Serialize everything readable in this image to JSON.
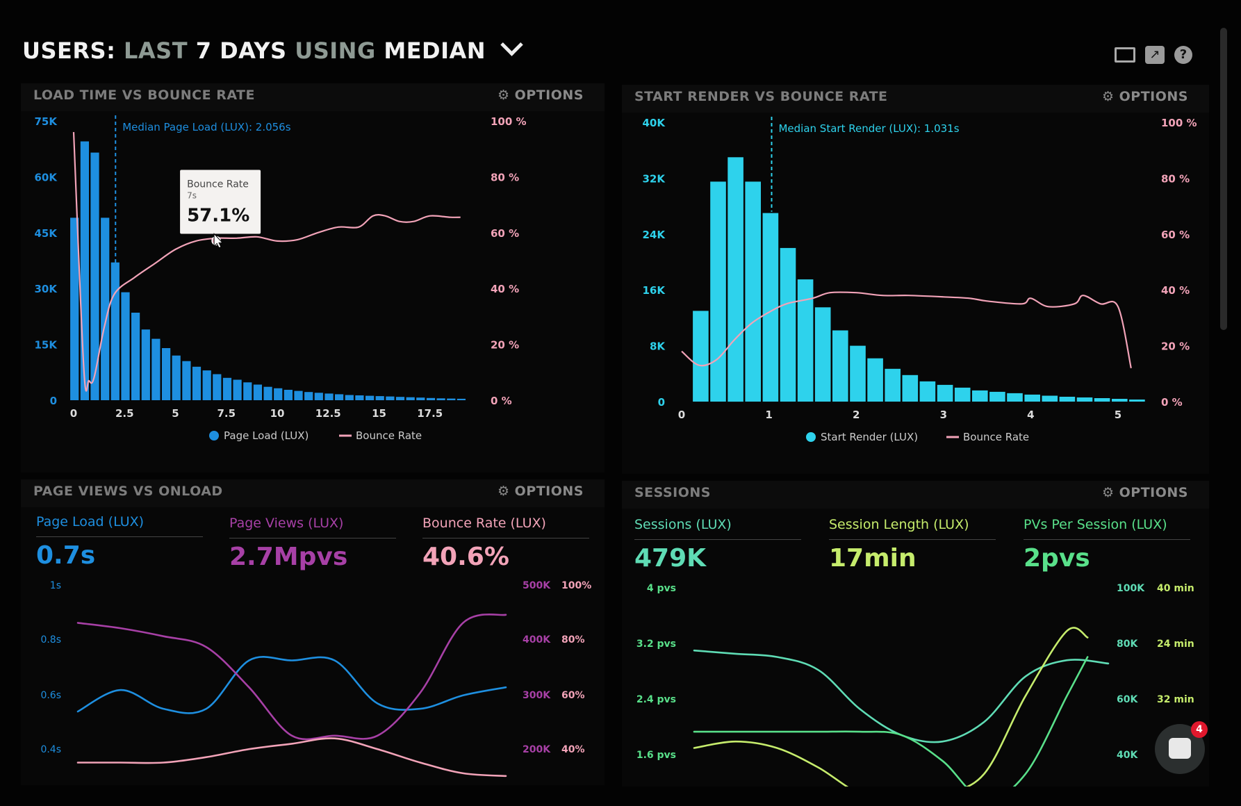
{
  "header": {
    "p1": "USERS:",
    "p2": "LAST",
    "p3": "7 DAYS",
    "p4": "USING",
    "p5": "MEDIAN",
    "icons": [
      "monitor-icon",
      "share-icon",
      "help-icon"
    ]
  },
  "colors": {
    "page_load": "#1e8fe0",
    "start_render": "#2ed2ec",
    "bounce_rate": "#f2a3b8",
    "page_views": "#a740a6",
    "sessions": "#5fdcb5",
    "session_length": "#c6ec6c",
    "pvs_per_session": "#59e08a"
  },
  "panel1": {
    "title": "LOAD TIME VS BOUNCE RATE",
    "options": "OPTIONS",
    "annotation": "Median Page Load (LUX): 2.056s",
    "tooltip": {
      "label": "Bounce Rate",
      "sub": "7s",
      "value": "57.1%"
    },
    "legend": [
      "Page Load (LUX)",
      "Bounce Rate"
    ]
  },
  "panel2": {
    "title": "START RENDER VS BOUNCE RATE",
    "options": "OPTIONS",
    "annotation": "Median Start Render (LUX): 1.031s",
    "legend": [
      "Start Render (LUX)",
      "Bounce Rate"
    ]
  },
  "panel3": {
    "title": "PAGE VIEWS VS ONLOAD",
    "options": "OPTIONS",
    "metrics": [
      {
        "label": "Page Load (LUX)",
        "value": "0.7s"
      },
      {
        "label": "Page Views (LUX)",
        "value": "2.7Mpvs"
      },
      {
        "label": "Bounce Rate (LUX)",
        "value": "40.6%"
      }
    ]
  },
  "panel4": {
    "title": "SESSIONS",
    "options": "OPTIONS",
    "metrics": [
      {
        "label": "Sessions (LUX)",
        "value": "479K"
      },
      {
        "label": "Session Length (LUX)",
        "value": "17min"
      },
      {
        "label": "PVs Per Session (LUX)",
        "value": "2pvs"
      }
    ]
  },
  "chat": {
    "badge": "4"
  },
  "chart_data": [
    {
      "type": "bar",
      "x_ticks": [
        "0",
        "2.5",
        "5",
        "7.5",
        "10",
        "12.5",
        "15",
        "17.5"
      ],
      "y_ticks": [
        "0",
        "15K",
        "30K",
        "45K",
        "60K",
        "75K"
      ],
      "y2_ticks": [
        "0 %",
        "20 %",
        "40 %",
        "60 %",
        "80 %",
        "100 %"
      ],
      "ylim": [
        0,
        75000
      ],
      "y2lim": [
        0,
        100
      ],
      "xlim": [
        0,
        20
      ],
      "median_x": 2.056,
      "series": [
        {
          "name": "Page Load (LUX)",
          "type": "bar",
          "bin": 0.5,
          "values": [
            49000,
            69500,
            66500,
            49000,
            37000,
            29000,
            23500,
            19000,
            16500,
            14000,
            12000,
            10500,
            9000,
            8000,
            7000,
            6000,
            5500,
            4800,
            4200,
            3600,
            3200,
            2800,
            2500,
            2200,
            2000,
            1800,
            1600,
            1400,
            1300,
            1200,
            1100,
            1000,
            900,
            800,
            700,
            600,
            500,
            450,
            400
          ]
        },
        {
          "name": "Bounce Rate",
          "type": "line",
          "points": [
            [
              0,
              96
            ],
            [
              0.5,
              11
            ],
            [
              0.75,
              7
            ],
            [
              1,
              8
            ],
            [
              1.5,
              26
            ],
            [
              2,
              38
            ],
            [
              3,
              44
            ],
            [
              4,
              49
            ],
            [
              5,
              54
            ],
            [
              6,
              57
            ],
            [
              7,
              58
            ],
            [
              8,
              58
            ],
            [
              9,
              58.5
            ],
            [
              10,
              57
            ],
            [
              11,
              57.5
            ],
            [
              12,
              60
            ],
            [
              13,
              62
            ],
            [
              14,
              62
            ],
            [
              14.7,
              66
            ],
            [
              15.3,
              66
            ],
            [
              16,
              64
            ],
            [
              16.7,
              64
            ],
            [
              17.5,
              66
            ],
            [
              18.5,
              65.5
            ],
            [
              19,
              65.5
            ]
          ]
        }
      ]
    },
    {
      "type": "bar",
      "x_ticks": [
        "0",
        "1",
        "2",
        "3",
        "4",
        "5"
      ],
      "y_ticks": [
        "0",
        "8K",
        "16K",
        "24K",
        "32K",
        "40K"
      ],
      "y2_ticks": [
        "0 %",
        "20 %",
        "40 %",
        "60 %",
        "80 %",
        "100 %"
      ],
      "ylim": [
        0,
        40000
      ],
      "y2lim": [
        0,
        100
      ],
      "xlim": [
        0,
        5
      ],
      "median_x": 1.031,
      "series": [
        {
          "name": "Start Render (LUX)",
          "type": "bar",
          "bin": 0.2,
          "values": [
            13000,
            31500,
            35000,
            31500,
            27000,
            22000,
            17500,
            13500,
            10200,
            8000,
            6200,
            4700,
            3800,
            2900,
            2400,
            2000,
            1600,
            1400,
            1200,
            1000,
            850,
            700,
            600,
            500,
            400,
            300
          ]
        },
        {
          "name": "Bounce Rate",
          "type": "line",
          "points": [
            [
              0,
              18
            ],
            [
              0.2,
              13
            ],
            [
              0.4,
              15
            ],
            [
              0.6,
              22
            ],
            [
              0.8,
              28
            ],
            [
              1,
              32
            ],
            [
              1.2,
              35
            ],
            [
              1.5,
              37
            ],
            [
              1.7,
              39
            ],
            [
              2,
              39
            ],
            [
              2.3,
              38
            ],
            [
              2.6,
              38
            ],
            [
              3,
              37.5
            ],
            [
              3.3,
              37
            ],
            [
              3.5,
              36
            ],
            [
              3.9,
              35
            ],
            [
              4,
              37
            ],
            [
              4.2,
              34
            ],
            [
              4.5,
              35
            ],
            [
              4.6,
              38
            ],
            [
              4.8,
              35
            ],
            [
              5,
              34
            ],
            [
              5.15,
              12
            ]
          ]
        }
      ]
    },
    {
      "type": "line",
      "y_ticks": [
        "0.4s",
        "0.6s",
        "0.8s",
        "1s"
      ],
      "y2_ticks_views": [
        "200K",
        "300K",
        "400K",
        "500K"
      ],
      "y2_ticks_bounce": [
        "40%",
        "60%",
        "80%",
        "100%"
      ],
      "ylim": [
        0.3,
        1.05
      ],
      "series": [
        {
          "name": "Page Load (LUX)",
          "axis": "s",
          "points": [
            [
              0,
              0.6
            ],
            [
              1,
              0.68
            ],
            [
              2,
              0.61
            ],
            [
              3,
              0.61
            ],
            [
              4,
              0.79
            ],
            [
              5,
              0.79
            ],
            [
              6,
              0.79
            ],
            [
              7,
              0.63
            ],
            [
              8,
              0.61
            ],
            [
              9,
              0.66
            ],
            [
              10,
              0.69
            ]
          ]
        },
        {
          "name": "Page Views (LUX)",
          "axis": "s",
          "points": [
            [
              0,
              0.93
            ],
            [
              1,
              0.91
            ],
            [
              2,
              0.88
            ],
            [
              3,
              0.84
            ],
            [
              4,
              0.69
            ],
            [
              5,
              0.51
            ],
            [
              6,
              0.51
            ],
            [
              7,
              0.51
            ],
            [
              8,
              0.67
            ],
            [
              9,
              0.93
            ],
            [
              10,
              0.96
            ]
          ]
        },
        {
          "name": "Bounce Rate (LUX)",
          "axis": "s",
          "points": [
            [
              0,
              0.41
            ],
            [
              1,
              0.41
            ],
            [
              2,
              0.41
            ],
            [
              3,
              0.43
            ],
            [
              4,
              0.46
            ],
            [
              5,
              0.48
            ],
            [
              6,
              0.5
            ],
            [
              7,
              0.46
            ],
            [
              8,
              0.41
            ],
            [
              9,
              0.37
            ],
            [
              10,
              0.36
            ]
          ]
        }
      ]
    },
    {
      "type": "line",
      "y_ticks": [
        "1.6 pvs",
        "2.4 pvs",
        "3.2 pvs",
        "4 pvs"
      ],
      "y2_ticks_sessions": [
        "40K",
        "60K",
        "80K",
        "100K"
      ],
      "y2_ticks_length": [
        "40 min",
        "32 min",
        "24 min",
        "40 min"
      ],
      "ylim": [
        1.0,
        4.1
      ],
      "series": [
        {
          "name": "Sessions (LUX)",
          "axis": "pvs",
          "points": [
            [
              0,
              3.2
            ],
            [
              1,
              3.15
            ],
            [
              2,
              3.1
            ],
            [
              3,
              2.9
            ],
            [
              4,
              2.3
            ],
            [
              5,
              1.9
            ],
            [
              6,
              1.8
            ],
            [
              7,
              2.1
            ],
            [
              8,
              2.8
            ],
            [
              9,
              3.05
            ],
            [
              10,
              3.0
            ]
          ]
        },
        {
          "name": "Session Length (LUX)",
          "axis": "pvs",
          "points": [
            [
              0,
              1.7
            ],
            [
              1,
              1.8
            ],
            [
              2,
              1.7
            ],
            [
              3,
              1.4
            ],
            [
              4,
              1.0
            ],
            [
              5,
              0.9
            ],
            [
              6,
              1.0
            ],
            [
              7,
              1.3
            ],
            [
              8,
              2.5
            ],
            [
              9,
              3.5
            ],
            [
              9.5,
              3.4
            ]
          ]
        },
        {
          "name": "PVs Per Session (LUX)",
          "axis": "pvs",
          "points": [
            [
              0,
              1.95
            ],
            [
              1,
              1.95
            ],
            [
              2,
              1.95
            ],
            [
              3,
              1.95
            ],
            [
              4,
              1.95
            ],
            [
              5,
              1.9
            ],
            [
              6,
              1.5
            ],
            [
              7,
              0.9
            ],
            [
              8,
              1.3
            ],
            [
              9,
              2.5
            ],
            [
              9.5,
              3.1
            ]
          ]
        }
      ]
    }
  ]
}
